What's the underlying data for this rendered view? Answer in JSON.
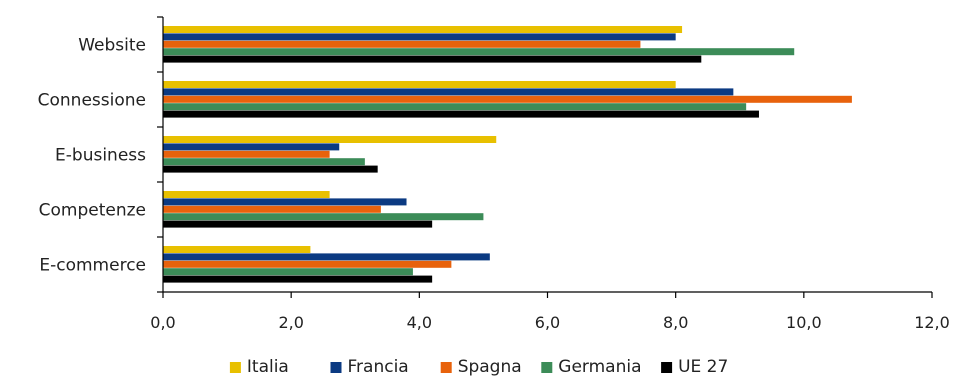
{
  "chart_data": {
    "type": "bar",
    "orientation": "horizontal",
    "categories": [
      "Website",
      "Connessione",
      "E-business",
      "Competenze",
      "E-commerce"
    ],
    "series": [
      {
        "name": "Italia",
        "color": "#E8C000",
        "values": [
          8.1,
          8.0,
          5.2,
          2.6,
          2.3
        ]
      },
      {
        "name": "Francia",
        "color": "#0B3A82",
        "values": [
          8.0,
          8.9,
          2.75,
          3.8,
          5.1
        ]
      },
      {
        "name": "Spagna",
        "color": "#E8620C",
        "values": [
          7.45,
          10.75,
          2.6,
          3.4,
          4.5
        ]
      },
      {
        "name": "Germania",
        "color": "#3C8C58",
        "values": [
          9.85,
          9.1,
          3.15,
          5.0,
          3.9
        ]
      },
      {
        "name": "UE 27",
        "color": "#000000",
        "values": [
          8.4,
          9.3,
          3.35,
          4.2,
          4.2
        ]
      }
    ],
    "x_ticks": [
      "0,0",
      "2,0",
      "4,0",
      "6,0",
      "8,0",
      "10,0",
      "12,0"
    ],
    "xlim": [
      0,
      12
    ],
    "grid": false,
    "legend_position": "bottom"
  }
}
